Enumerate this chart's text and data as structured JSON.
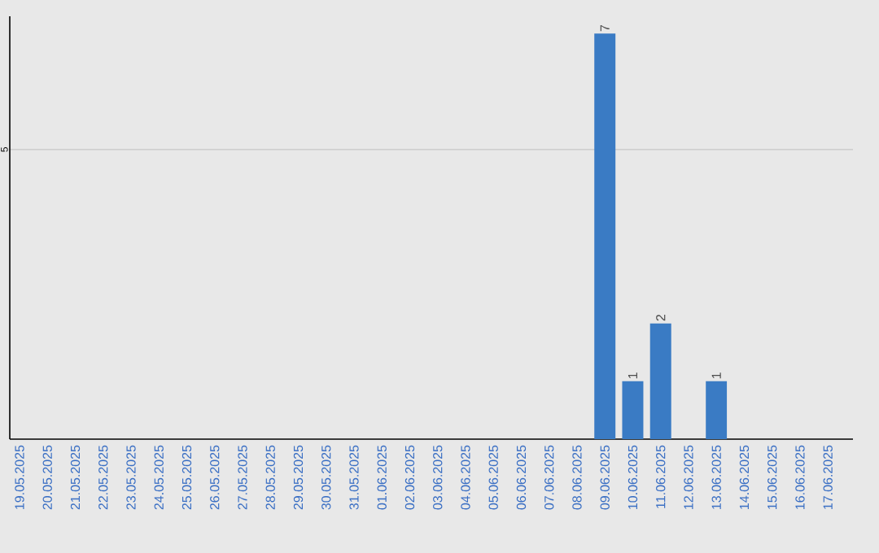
{
  "chart_data": {
    "type": "bar",
    "categories": [
      "19.05.2025",
      "20.05.2025",
      "21.05.2025",
      "22.05.2025",
      "23.05.2025",
      "24.05.2025",
      "25.05.2025",
      "26.05.2025",
      "27.05.2025",
      "28.05.2025",
      "29.05.2025",
      "30.05.2025",
      "31.05.2025",
      "01.06.2025",
      "02.06.2025",
      "03.06.2025",
      "04.06.2025",
      "05.06.2025",
      "06.06.2025",
      "07.06.2025",
      "08.06.2025",
      "09.06.2025",
      "10.06.2025",
      "11.06.2025",
      "12.06.2025",
      "13.06.2025",
      "14.06.2025",
      "15.06.2025",
      "16.06.2025",
      "17.06.2025"
    ],
    "values": [
      null,
      null,
      null,
      null,
      null,
      null,
      null,
      null,
      null,
      null,
      null,
      null,
      null,
      null,
      null,
      null,
      null,
      null,
      null,
      null,
      null,
      7,
      1,
      2,
      null,
      1,
      null,
      null,
      null,
      null
    ],
    "color": "#3a7bc4",
    "ylim": [
      0,
      7.3
    ],
    "yticks": [
      5
    ],
    "grid": "y",
    "data_labels": true
  }
}
